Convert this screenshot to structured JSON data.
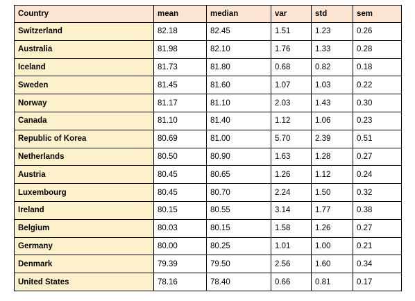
{
  "table": {
    "columns": [
      "Country",
      "mean",
      "median",
      "var",
      "std",
      "sem"
    ],
    "rows": [
      [
        "Switzerland",
        "82.18",
        "82.45",
        "1.51",
        "1.23",
        "0.26"
      ],
      [
        "Australia",
        "81.98",
        "82.10",
        "1.76",
        "1.33",
        "0.28"
      ],
      [
        "Iceland",
        "81.73",
        "81.80",
        "0.68",
        "0.82",
        "0.18"
      ],
      [
        "Sweden",
        "81.45",
        "81.60",
        "1.07",
        "1.03",
        "0.22"
      ],
      [
        "Norway",
        "81.17",
        "81.10",
        "2.03",
        "1.43",
        "0.30"
      ],
      [
        "Canada",
        "81.10",
        "81.40",
        "1.12",
        "1.06",
        "0.23"
      ],
      [
        "Republic of Korea",
        "80.69",
        "81.00",
        "5.70",
        "2.39",
        "0.51"
      ],
      [
        "Netherlands",
        "80.50",
        "80.90",
        "1.63",
        "1.28",
        "0.27"
      ],
      [
        "Austria",
        "80.45",
        "80.65",
        "1.26",
        "1.12",
        "0.24"
      ],
      [
        "Luxembourg",
        "80.45",
        "80.70",
        "2.24",
        "1.50",
        "0.32"
      ],
      [
        "Ireland",
        "80.15",
        "80.55",
        "3.14",
        "1.77",
        "0.38"
      ],
      [
        "Belgium",
        "80.03",
        "80.15",
        "1.58",
        "1.26",
        "0.27"
      ],
      [
        "Germany",
        "80.00",
        "80.25",
        "1.01",
        "1.00",
        "0.21"
      ],
      [
        "Denmark",
        "79.39",
        "79.50",
        "2.56",
        "1.60",
        "0.34"
      ],
      [
        "United States",
        "78.16",
        "78.40",
        "0.66",
        "0.81",
        "0.17"
      ]
    ]
  },
  "colors": {
    "header_bg": "#fbe4d2",
    "country_bg": "#fdf1cb",
    "cell_bg": "#ffffff",
    "border": "#000000"
  }
}
